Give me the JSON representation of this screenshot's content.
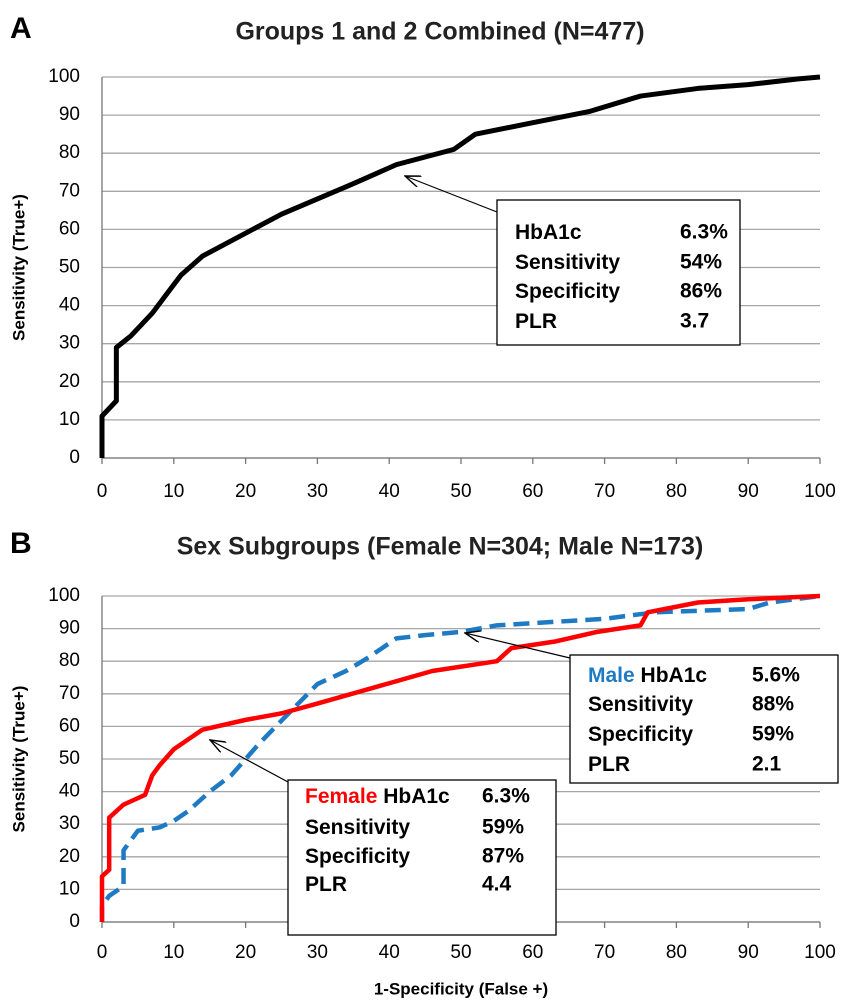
{
  "chart_data": [
    {
      "type": "line",
      "panel_label": "A",
      "title": "Groups 1 and 2 Combined (N=477)",
      "ylabel": "Sensitivity (True+)",
      "xlim": [
        0,
        100
      ],
      "ylim": [
        0,
        100
      ],
      "xticks": [
        0,
        10,
        20,
        30,
        40,
        50,
        60,
        70,
        80,
        90,
        100
      ],
      "yticks": [
        0,
        10,
        20,
        30,
        40,
        50,
        60,
        70,
        80,
        90,
        100
      ],
      "grid": true,
      "series": [
        {
          "color": "#000000",
          "dash": false,
          "x": [
            0,
            0,
            2,
            2,
            4,
            6,
            7,
            9,
            11,
            14,
            20,
            25,
            30,
            35,
            41,
            45,
            49,
            52,
            60,
            68,
            75,
            83,
            90,
            97,
            100
          ],
          "values": [
            0,
            11,
            15,
            29,
            32,
            36,
            38,
            43,
            48,
            53,
            59,
            64,
            68,
            72,
            77,
            79,
            81,
            85,
            88,
            91,
            95,
            97,
            98,
            99.5,
            100
          ]
        }
      ],
      "annotations": [
        {
          "rows": [
            [
              "HbA1c",
              "6.3%"
            ],
            [
              "Sensitivity",
              "54%"
            ],
            [
              "Specificity",
              "86%"
            ],
            [
              "PLR",
              "3.7"
            ]
          ]
        }
      ]
    },
    {
      "type": "line",
      "panel_label": "B",
      "title": "Sex Subgroups (Female N=304; Male N=173)",
      "ylabel": "Sensitivity (True+)",
      "xlabel": "1-Specificity (False +)",
      "xlim": [
        0,
        100
      ],
      "ylim": [
        0,
        100
      ],
      "xticks": [
        0,
        10,
        20,
        30,
        40,
        50,
        60,
        70,
        80,
        90,
        100
      ],
      "yticks": [
        0,
        10,
        20,
        30,
        40,
        50,
        60,
        70,
        80,
        90,
        100
      ],
      "grid": true,
      "series": [
        {
          "name": "Male",
          "color": "#1f7ac4",
          "dash": true,
          "x": [
            0,
            0,
            1,
            3,
            3,
            5,
            8,
            10,
            12,
            15,
            18,
            22,
            26,
            30,
            34,
            37,
            41,
            45,
            50,
            55,
            70,
            77,
            90,
            93,
            100
          ],
          "values": [
            0,
            5,
            8,
            11,
            22,
            28,
            29,
            31,
            34,
            40,
            45,
            55,
            64,
            73,
            77,
            81,
            87,
            88,
            89,
            91,
            93,
            95,
            96,
            98,
            100
          ]
        },
        {
          "name": "Female",
          "color": "#ff0000",
          "dash": false,
          "x": [
            0,
            0,
            1,
            1,
            3,
            5,
            6,
            7,
            8,
            10,
            12,
            14,
            20,
            25,
            30,
            38,
            46,
            55,
            57,
            63,
            69,
            75,
            76,
            83,
            90,
            100
          ],
          "values": [
            0,
            14,
            16,
            32,
            36,
            38,
            39,
            45,
            48,
            53,
            56,
            59,
            62,
            64,
            67,
            72,
            77,
            80,
            84,
            86,
            89,
            91,
            95,
            98,
            99,
            100
          ]
        }
      ],
      "annotations": [
        {
          "series": 0,
          "rows": [
            [
              "HbA1c",
              "5.6%"
            ],
            [
              "Sensitivity",
              "88%"
            ],
            [
              "Specificity",
              "59%"
            ],
            [
              "PLR",
              "2.1"
            ]
          ]
        },
        {
          "series": 1,
          "rows": [
            [
              "HbA1c",
              "6.3%"
            ],
            [
              "Sensitivity",
              "59%"
            ],
            [
              "Specificity",
              "87%"
            ],
            [
              "PLR",
              "4.4"
            ]
          ]
        }
      ]
    }
  ]
}
